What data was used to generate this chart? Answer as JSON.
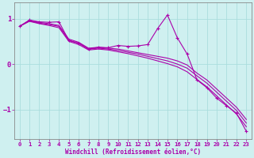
{
  "xlabel": "Windchill (Refroidissement éolien,°C)",
  "bg_color": "#cff0f0",
  "grid_color": "#aadddd",
  "line_color": "#aa00aa",
  "spine_color": "#888888",
  "xlim": [
    -0.5,
    23.5
  ],
  "ylim": [
    -1.65,
    1.35
  ],
  "xticks": [
    0,
    1,
    2,
    3,
    4,
    5,
    6,
    7,
    8,
    9,
    10,
    11,
    12,
    13,
    14,
    15,
    16,
    17,
    18,
    19,
    20,
    21,
    22,
    23
  ],
  "yticks": [
    -1,
    0,
    1
  ],
  "series": [
    {
      "x": [
        0,
        1,
        2,
        3,
        4,
        5,
        6,
        7,
        8,
        9,
        10,
        11,
        12,
        13,
        14,
        15,
        16,
        17,
        18,
        19,
        20,
        21,
        22,
        23
      ],
      "y": [
        0.83,
        0.97,
        0.93,
        0.92,
        0.93,
        0.52,
        0.46,
        0.33,
        0.37,
        0.36,
        0.41,
        0.39,
        0.4,
        0.43,
        0.78,
        1.08,
        0.58,
        0.22,
        -0.35,
        -0.52,
        -0.75,
        -0.92,
        -1.08,
        -1.48
      ],
      "marker": true
    },
    {
      "x": [
        0,
        1,
        2,
        3,
        4,
        5,
        6,
        7,
        8,
        9,
        10,
        11,
        12,
        13,
        14,
        15,
        16,
        17,
        18,
        19,
        20,
        21,
        22,
        23
      ],
      "y": [
        0.83,
        0.96,
        0.92,
        0.89,
        0.85,
        0.55,
        0.48,
        0.35,
        0.37,
        0.35,
        0.33,
        0.29,
        0.25,
        0.21,
        0.17,
        0.13,
        0.07,
        -0.02,
        -0.2,
        -0.35,
        -0.55,
        -0.75,
        -0.95,
        -1.22
      ],
      "marker": false
    },
    {
      "x": [
        0,
        1,
        2,
        3,
        4,
        5,
        6,
        7,
        8,
        9,
        10,
        11,
        12,
        13,
        14,
        15,
        16,
        17,
        18,
        19,
        20,
        21,
        22,
        23
      ],
      "y": [
        0.83,
        0.95,
        0.9,
        0.87,
        0.83,
        0.52,
        0.46,
        0.33,
        0.35,
        0.33,
        0.3,
        0.26,
        0.22,
        0.17,
        0.12,
        0.07,
        0.0,
        -0.09,
        -0.26,
        -0.42,
        -0.62,
        -0.82,
        -1.02,
        -1.3
      ],
      "marker": false
    },
    {
      "x": [
        0,
        1,
        2,
        3,
        4,
        5,
        6,
        7,
        8,
        9,
        10,
        11,
        12,
        13,
        14,
        15,
        16,
        17,
        18,
        19,
        20,
        21,
        22,
        23
      ],
      "y": [
        0.83,
        0.94,
        0.89,
        0.85,
        0.8,
        0.5,
        0.43,
        0.31,
        0.33,
        0.31,
        0.27,
        0.23,
        0.18,
        0.13,
        0.07,
        0.01,
        -0.06,
        -0.17,
        -0.34,
        -0.5,
        -0.7,
        -0.9,
        -1.1,
        -1.38
      ],
      "marker": false
    }
  ]
}
